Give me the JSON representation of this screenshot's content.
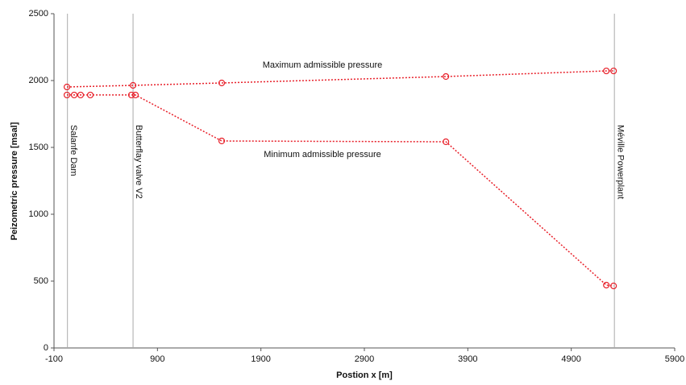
{
  "chart_data": {
    "type": "line",
    "xlabel": "Postion x [m]",
    "ylabel": "Peizometric pressure [msal]",
    "xlim": [
      -100,
      5900
    ],
    "xticks": [
      -100,
      900,
      1900,
      2900,
      3900,
      4900,
      5900
    ],
    "ylim": [
      0,
      2500
    ],
    "yticks": [
      0,
      500,
      1000,
      1500,
      2000,
      2500
    ],
    "series": [
      {
        "name": "Maximum admissible pressure",
        "color": "#e8202a",
        "x": [
          25,
          664,
          1521,
          3688,
          5239,
          5309
        ],
        "values": [
          1952,
          1964,
          1982,
          2030,
          2072,
          2072
        ]
      },
      {
        "name": "Minimum admissible pressure",
        "color": "#e8202a",
        "x": [
          25,
          95,
          157,
          251,
          648,
          687,
          1521,
          3688,
          5239,
          5309
        ],
        "values": [
          1892,
          1892,
          1892,
          1892,
          1892,
          1892,
          1548,
          1542,
          470,
          464
        ]
      }
    ],
    "markers": [
      {
        "label": "Salanfe Dam",
        "x": 30
      },
      {
        "label": "Butterflay valve V2",
        "x": 664
      },
      {
        "label": "Méville Powerplant",
        "x": 5317
      }
    ]
  }
}
